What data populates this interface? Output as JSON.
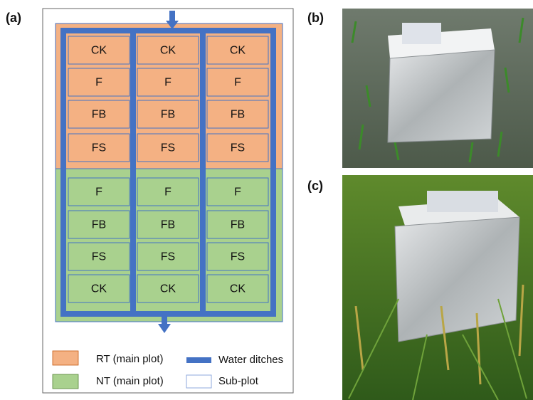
{
  "panel_labels": [
    "(a)",
    "(b)",
    "(c)"
  ],
  "plots": {
    "rt": [
      [
        "CK",
        "CK",
        "CK"
      ],
      [
        "F",
        "F",
        "F"
      ],
      [
        "FB",
        "FB",
        "FB"
      ],
      [
        "FS",
        "FS",
        "FS"
      ]
    ],
    "nt": [
      [
        "F",
        "F",
        "F"
      ],
      [
        "FB",
        "FB",
        "FB"
      ],
      [
        "FS",
        "FS",
        "FS"
      ],
      [
        "CK",
        "CK",
        "CK"
      ]
    ]
  },
  "legend": [
    "RT (main plot)",
    "NT (main plot)",
    "Water ditches",
    "Sub-plot"
  ]
}
